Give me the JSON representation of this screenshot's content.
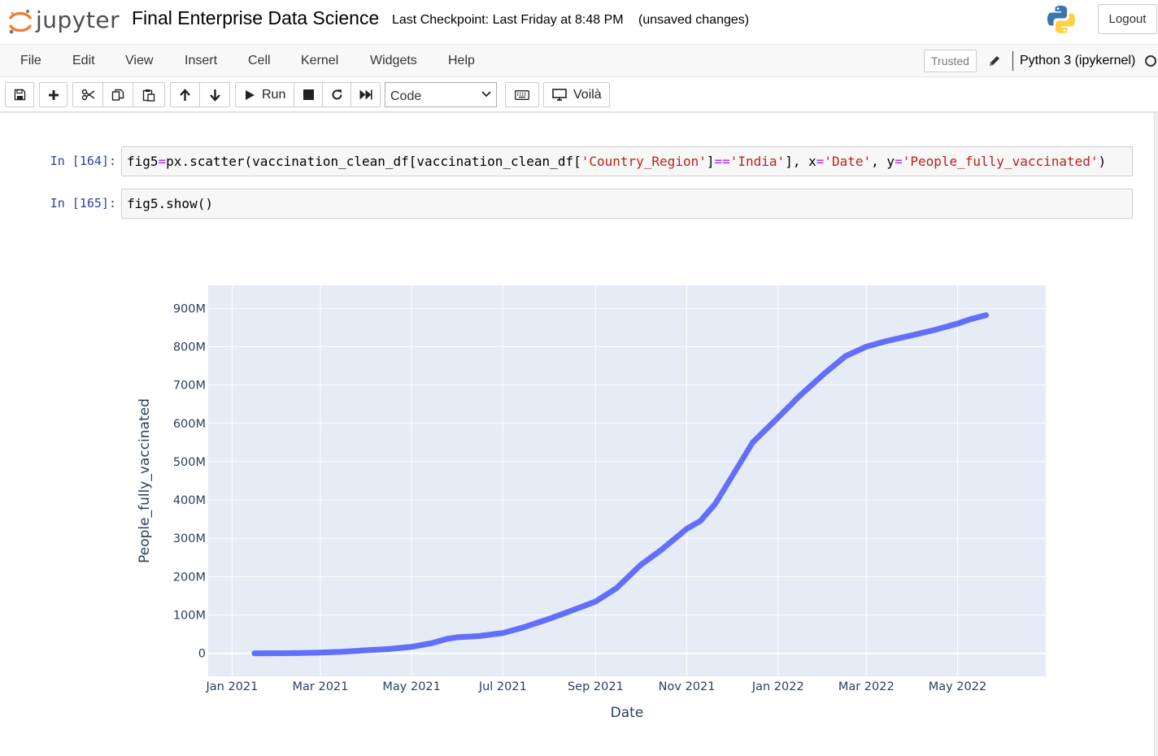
{
  "header": {
    "logo_text": "jupyter",
    "notebook_title": "Final Enterprise Data Science",
    "checkpoint": "Last Checkpoint: Last Friday at 8:48 PM",
    "autosave_status": "(unsaved changes)",
    "logout_label": "Logout"
  },
  "menubar": {
    "items": [
      "File",
      "Edit",
      "View",
      "Insert",
      "Cell",
      "Kernel",
      "Widgets",
      "Help"
    ],
    "trusted_label": "Trusted",
    "kernel_name": "Python 3 (ipykernel)"
  },
  "toolbar": {
    "run_label": "Run",
    "cell_type": "Code",
    "voila_label": "Voilà",
    "icons": [
      "save-icon",
      "plus-icon",
      "cut-icon",
      "copy-icon",
      "paste-icon",
      "arrow-up-icon",
      "arrow-down-icon",
      "run-icon",
      "stop-icon",
      "restart-icon",
      "fast-forward-icon",
      "keyboard-icon",
      "monitor-icon"
    ]
  },
  "cells": [
    {
      "prompt": "In [164]:",
      "code_parts": [
        {
          "t": "fig5",
          "c": ""
        },
        {
          "t": "=",
          "c": "op"
        },
        {
          "t": "px.scatter(vaccination_clean_df[vaccination_clean_df[",
          "c": ""
        },
        {
          "t": "'Country_Region'",
          "c": "str"
        },
        {
          "t": "]",
          "c": ""
        },
        {
          "t": "==",
          "c": "op"
        },
        {
          "t": "'India'",
          "c": "str"
        },
        {
          "t": "], x",
          "c": ""
        },
        {
          "t": "=",
          "c": "op"
        },
        {
          "t": "'Date'",
          "c": "str"
        },
        {
          "t": ", y",
          "c": ""
        },
        {
          "t": "=",
          "c": "op"
        },
        {
          "t": "'People_fully_vaccinated'",
          "c": "str"
        },
        {
          "t": ")",
          "c": ""
        }
      ]
    },
    {
      "prompt": "In [165]:",
      "code_parts": [
        {
          "t": "fig5.show()",
          "c": ""
        }
      ]
    }
  ],
  "chart_data": {
    "type": "scatter",
    "title": "",
    "xlabel": "Date",
    "ylabel": "People_fully_vaccinated",
    "x_ticks": [
      "Jan 2021",
      "Mar 2021",
      "May 2021",
      "Jul 2021",
      "Sep 2021",
      "Nov 2021",
      "Jan 2022",
      "Mar 2022",
      "May 2022"
    ],
    "x_tick_dates": [
      "2021-01-01",
      "2021-03-01",
      "2021-05-01",
      "2021-07-01",
      "2021-09-01",
      "2021-11-01",
      "2022-01-01",
      "2022-03-01",
      "2022-05-01"
    ],
    "y_ticks": [
      0,
      100,
      200,
      300,
      400,
      500,
      600,
      700,
      800,
      900
    ],
    "y_tick_labels": [
      "0",
      "100M",
      "200M",
      "300M",
      "400M",
      "500M",
      "600M",
      "700M",
      "800M",
      "900M"
    ],
    "x_range": [
      "2020-12-16",
      "2022-06-29"
    ],
    "ylim": [
      -60,
      960
    ],
    "y_unit": "millions",
    "marker_color": "#636efa",
    "plot_bg": "#e5ecf6",
    "grid": true,
    "series": [
      {
        "points": [
          [
            "2021-01-16",
            0
          ],
          [
            "2021-02-01",
            0.2
          ],
          [
            "2021-02-15",
            0.8
          ],
          [
            "2021-03-01",
            2
          ],
          [
            "2021-03-15",
            4
          ],
          [
            "2021-04-01",
            8
          ],
          [
            "2021-04-15",
            11
          ],
          [
            "2021-05-01",
            17
          ],
          [
            "2021-05-15",
            27
          ],
          [
            "2021-05-25",
            38
          ],
          [
            "2021-06-01",
            42
          ],
          [
            "2021-06-15",
            45
          ],
          [
            "2021-07-01",
            53
          ],
          [
            "2021-07-15",
            68
          ],
          [
            "2021-08-01",
            90
          ],
          [
            "2021-08-15",
            110
          ],
          [
            "2021-09-01",
            135
          ],
          [
            "2021-09-15",
            170
          ],
          [
            "2021-10-01",
            230
          ],
          [
            "2021-10-15",
            270
          ],
          [
            "2021-11-01",
            325
          ],
          [
            "2021-11-10",
            345
          ],
          [
            "2021-11-20",
            390
          ],
          [
            "2021-12-01",
            460
          ],
          [
            "2021-12-15",
            550
          ],
          [
            "2022-01-01",
            615
          ],
          [
            "2022-01-15",
            670
          ],
          [
            "2022-02-01",
            730
          ],
          [
            "2022-02-15",
            775
          ],
          [
            "2022-03-01",
            800
          ],
          [
            "2022-03-15",
            815
          ],
          [
            "2022-04-01",
            830
          ],
          [
            "2022-04-15",
            843
          ],
          [
            "2022-05-01",
            860
          ],
          [
            "2022-05-10",
            872
          ],
          [
            "2022-05-20",
            882
          ]
        ]
      }
    ]
  }
}
